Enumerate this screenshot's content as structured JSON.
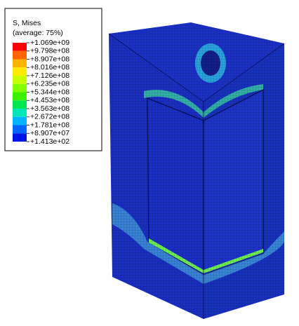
{
  "legend": {
    "title": "S, Mises",
    "subtitle": "(average: 75%)",
    "labels": [
      "+1.069e+09",
      "+9.798e+08",
      "+8.907e+08",
      "+8.016e+08",
      "+7.126e+08",
      "+6.235e+08",
      "+5.344e+08",
      "+4.453e+08",
      "+3.563e+08",
      "+2.672e+08",
      "+1.781e+08",
      "+8.907e+07",
      "+1.413e+02"
    ],
    "colors": [
      "#ff0000",
      "#ff6400",
      "#ffb400",
      "#ffeb00",
      "#c8ff00",
      "#82ff00",
      "#3cf000",
      "#00e650",
      "#00e6b4",
      "#00b4ff",
      "#0064ff",
      "#0014e6"
    ]
  }
}
